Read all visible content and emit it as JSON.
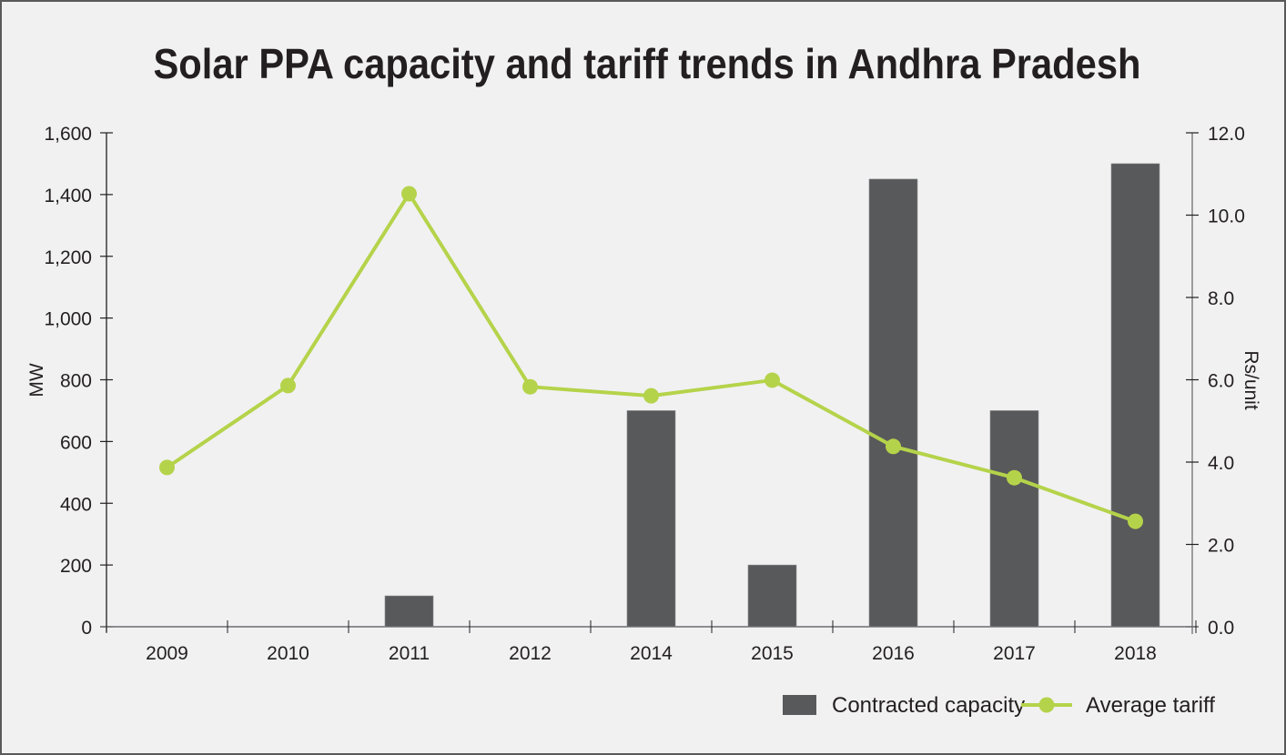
{
  "chart_data": {
    "type": "bar",
    "title": "Solar PPA capacity and tariff trends in Andhra Pradesh",
    "categories": [
      "2009",
      "2010",
      "2011",
      "2012",
      "2014",
      "2015",
      "2016",
      "2017",
      "2018"
    ],
    "series": [
      {
        "name": "Contracted capacity",
        "type": "bar",
        "axis": "left",
        "color": "#58595b",
        "values": [
          0,
          0,
          100,
          0,
          700,
          200,
          1450,
          700,
          1500
        ]
      },
      {
        "name": "Average tariff",
        "type": "line",
        "axis": "right",
        "color": "#b5d34a",
        "values": [
          3.87,
          5.86,
          10.52,
          5.83,
          5.61,
          5.99,
          4.38,
          3.62,
          2.56
        ]
      }
    ],
    "ylabel": "MW",
    "ylabel_right": "Rs/unit",
    "xlabel": "",
    "ylim": [
      0,
      1600
    ],
    "ylim_right": [
      0,
      12
    ],
    "yticks": [
      "0",
      "200",
      "400",
      "600",
      "800",
      "1,000",
      "1,200",
      "1,400",
      "1,600"
    ],
    "yticks_right": [
      "0.0",
      "2.0",
      "4.0",
      "6.0",
      "8.0",
      "10.0",
      "12.0"
    ],
    "grid": false,
    "legend_position": "bottom-right",
    "legend": [
      {
        "label": "Contracted capacity",
        "marker": "square"
      },
      {
        "label": "Average tariff",
        "marker": "line-dot"
      }
    ]
  }
}
